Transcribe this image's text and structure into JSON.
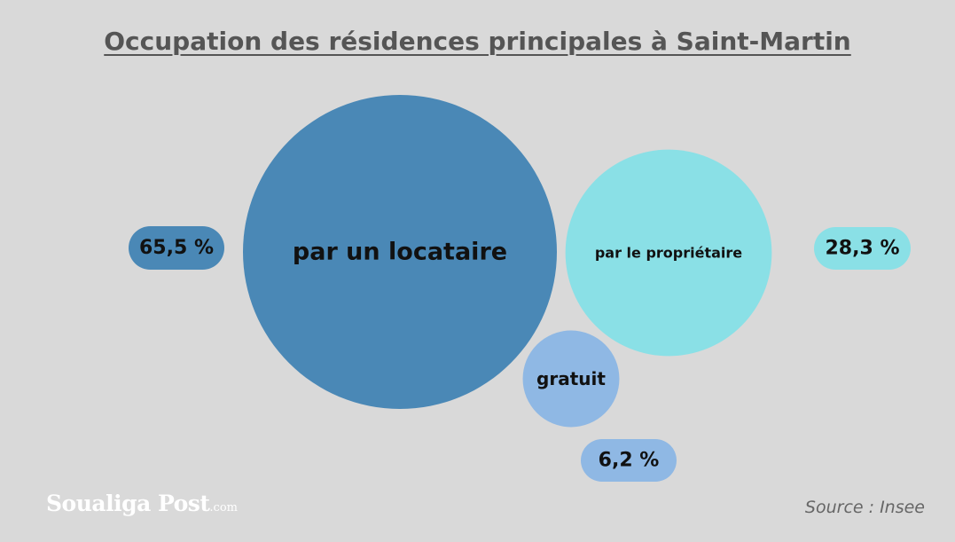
{
  "chart_data": {
    "type": "bubble",
    "title": "Occupation des résidences principales à Saint-Martin",
    "series": [
      {
        "name": "par un locataire",
        "value": 65.5,
        "label": "65,5 %",
        "color": "#4a88b6"
      },
      {
        "name": "par le propriétaire",
        "value": 28.3,
        "label": "28,3 %",
        "color": "#8ae0e6"
      },
      {
        "name": "gratuit",
        "value": 6.2,
        "label": "6,2 %",
        "color": "#8fb8e4"
      }
    ]
  },
  "footer": {
    "logo_text": "Soualiga Post",
    "logo_suffix": ".com",
    "source": "Source : Insee"
  }
}
